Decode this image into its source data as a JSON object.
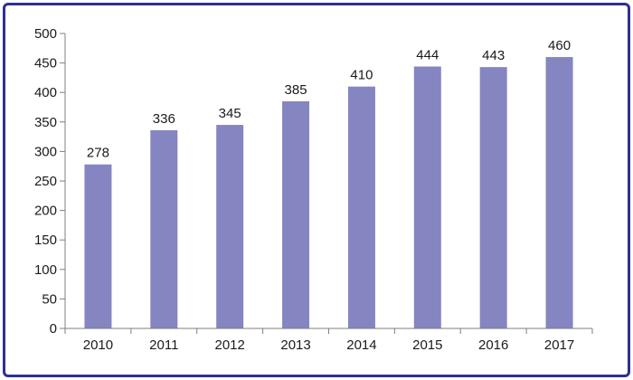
{
  "chart_data": {
    "type": "bar",
    "title": "",
    "xlabel": "",
    "ylabel": "",
    "categories": [
      "2010",
      "2011",
      "2012",
      "2013",
      "2014",
      "2015",
      "2016",
      "2017"
    ],
    "values": [
      278,
      336,
      345,
      385,
      410,
      444,
      443,
      460
    ],
    "ylim": [
      0,
      500
    ],
    "yticks": [
      0,
      50,
      100,
      150,
      200,
      250,
      300,
      350,
      400,
      450,
      500
    ],
    "grid": false,
    "legend": "none",
    "bar_color": "#8585c2",
    "frame_color": "#2e3192"
  }
}
